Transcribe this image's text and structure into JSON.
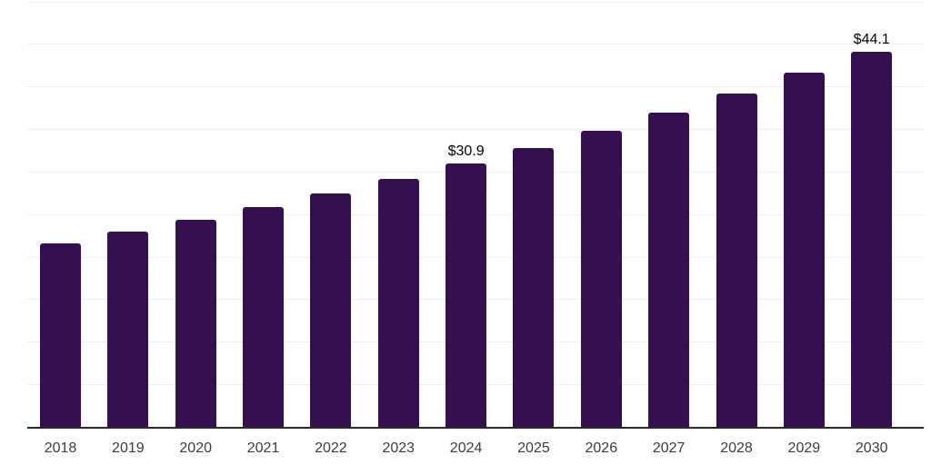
{
  "chart_data": {
    "type": "bar",
    "title": "",
    "xlabel": "",
    "ylabel": "",
    "categories": [
      "2018",
      "2019",
      "2020",
      "2021",
      "2022",
      "2023",
      "2024",
      "2025",
      "2026",
      "2027",
      "2028",
      "2029",
      "2030"
    ],
    "values": [
      21.6,
      22.9,
      24.3,
      25.8,
      27.4,
      29.1,
      30.9,
      32.8,
      34.8,
      36.9,
      39.2,
      41.6,
      44.1
    ],
    "unit": "USD (billions)",
    "data_labels": [
      {
        "category": "2024",
        "text": "$30.9"
      },
      {
        "category": "2030",
        "text": "$44.1"
      }
    ],
    "ylim": [
      0,
      50
    ],
    "grid_step": 5,
    "grid": "horizontal",
    "legend_position": "none",
    "colors": {
      "bar": "#35104F",
      "axis": "#2a2a2a",
      "gridline": "#efefef",
      "value_label": "#000000",
      "tick_label": "#3d3d3d",
      "background": "#ffffff"
    }
  }
}
